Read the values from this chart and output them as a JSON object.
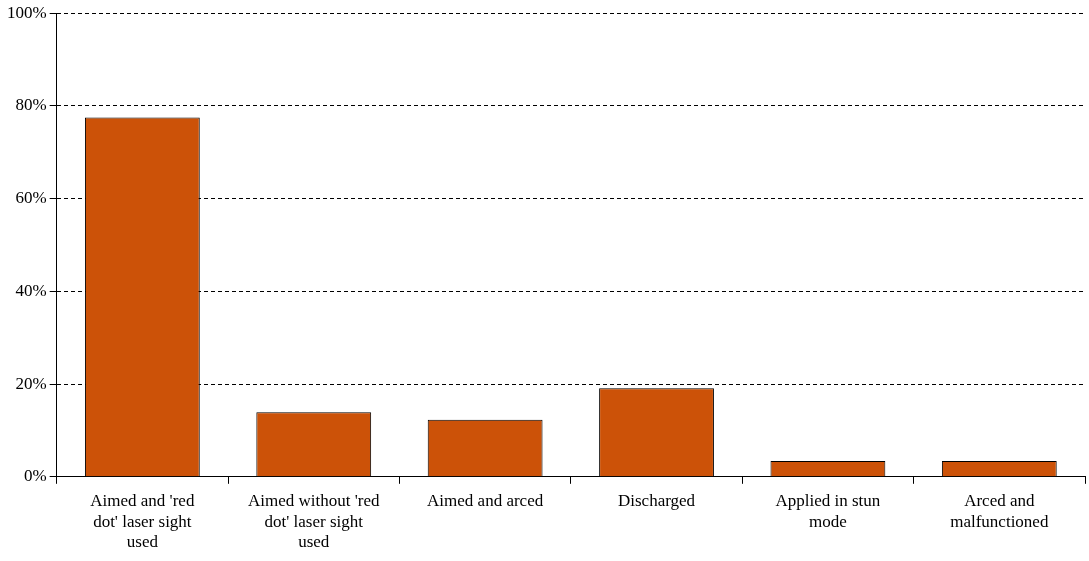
{
  "chart_data": {
    "type": "bar",
    "categories": [
      "Aimed and 'red dot' laser sight used",
      "Aimed without 'red dot' laser sight used",
      "Aimed and arced",
      "Discharged",
      "Applied in stun mode",
      "Arced and malfunctioned"
    ],
    "values": [
      77.5,
      13.9,
      12.3,
      19.1,
      3.4,
      3.4
    ],
    "color": "#cc5208",
    "ylim": [
      0,
      100
    ],
    "yticks": [
      {
        "value": 0,
        "label": "0%"
      },
      {
        "value": 20,
        "label": "20%"
      },
      {
        "value": 40,
        "label": "40%"
      },
      {
        "value": 60,
        "label": "60%"
      },
      {
        "value": 80,
        "label": "80%"
      },
      {
        "value": 100,
        "label": "100%"
      }
    ],
    "grid": "y",
    "legend": false
  }
}
